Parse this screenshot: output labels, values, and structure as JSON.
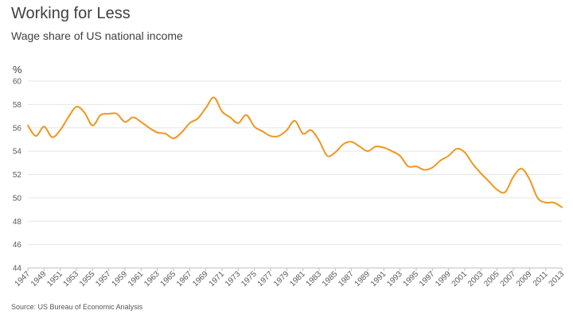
{
  "title": "Working for Less",
  "subtitle": "Wage share of US national income",
  "source": "Source: US Bureau of Economic Analysis",
  "chart_data": {
    "type": "line",
    "ylabel": "%",
    "xlabel": "",
    "ylim": [
      44,
      60
    ],
    "yticks": [
      44,
      46,
      48,
      50,
      52,
      54,
      56,
      58,
      60
    ],
    "xlim": [
      1947,
      2013
    ],
    "xticks": [
      1947,
      1949,
      1951,
      1953,
      1955,
      1957,
      1959,
      1961,
      1963,
      1965,
      1967,
      1969,
      1971,
      1973,
      1975,
      1977,
      1979,
      1981,
      1983,
      1985,
      1987,
      1989,
      1991,
      1993,
      1995,
      1997,
      1999,
      2001,
      2003,
      2005,
      2007,
      2009,
      2011,
      2013
    ],
    "grid": true,
    "line_color": "#f0961e",
    "series": [
      {
        "x": [
          1947,
          1948,
          1949,
          1950,
          1951,
          1952,
          1953,
          1954,
          1955,
          1956,
          1957,
          1958,
          1959,
          1960,
          1961,
          1962,
          1963,
          1964,
          1965,
          1966,
          1967,
          1968,
          1969,
          1970,
          1971,
          1972,
          1973,
          1974,
          1975,
          1976,
          1977,
          1978,
          1979,
          1980,
          1981,
          1982,
          1983,
          1984,
          1985,
          1986,
          1987,
          1988,
          1989,
          1990,
          1991,
          1992,
          1993,
          1994,
          1995,
          1996,
          1997,
          1998,
          1999,
          2000,
          2001,
          2002,
          2003,
          2004,
          2005,
          2006,
          2007,
          2008,
          2009,
          2010,
          2011,
          2012,
          2013
        ],
        "y": [
          56.2,
          55.3,
          56.1,
          55.2,
          55.8,
          56.9,
          57.8,
          57.3,
          56.2,
          57.1,
          57.2,
          57.2,
          56.5,
          56.9,
          56.5,
          56.0,
          55.6,
          55.5,
          55.1,
          55.6,
          56.4,
          56.8,
          57.7,
          58.6,
          57.4,
          56.9,
          56.4,
          57.1,
          56.1,
          55.7,
          55.3,
          55.3,
          55.8,
          56.6,
          55.5,
          55.8,
          54.9,
          53.6,
          53.9,
          54.6,
          54.8,
          54.4,
          54.0,
          54.4,
          54.3,
          54.0,
          53.6,
          52.7,
          52.7,
          52.4,
          52.6,
          53.2,
          53.6,
          54.2,
          53.9,
          52.9,
          52.1,
          51.4,
          50.7,
          50.5,
          51.8,
          52.5,
          51.6,
          50.0,
          49.6,
          49.6,
          49.2
        ]
      }
    ]
  }
}
